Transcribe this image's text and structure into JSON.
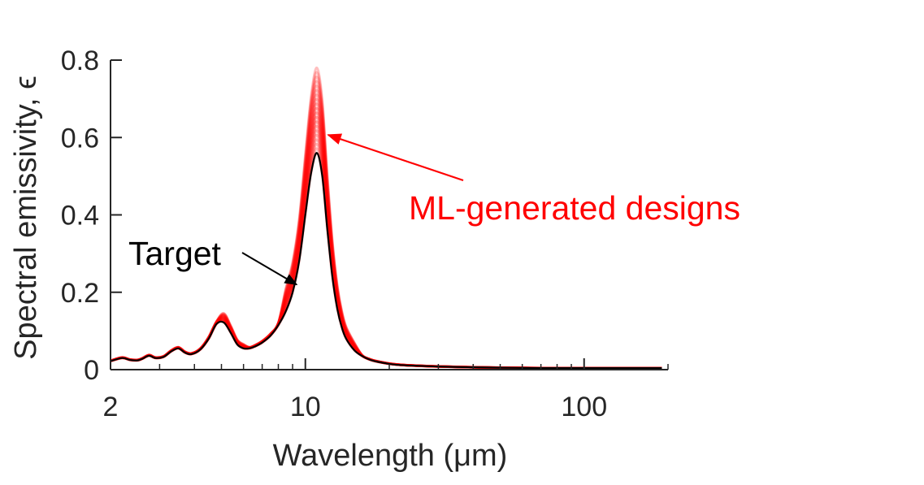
{
  "chart_data": {
    "type": "line",
    "title": "",
    "xlabel": "Wavelength (μm)",
    "ylabel": "Spectral emissivity, ϵ",
    "xscale": "log",
    "xlim": [
      2,
      200
    ],
    "ylim": [
      0,
      0.8
    ],
    "xticks": [
      2,
      10,
      100
    ],
    "xtick_labels": [
      "2",
      "10",
      "100"
    ],
    "yticks": [
      0,
      0.2,
      0.4,
      0.6,
      0.8
    ],
    "ytick_labels": [
      "0",
      "0.2",
      "0.4",
      "0.6",
      "0.8"
    ],
    "grid": false,
    "legend": "none",
    "colors": {
      "target": "#000000",
      "designs": "#ff0000",
      "axis": "#262626"
    },
    "series": [
      {
        "name": "Target",
        "color": "#000000",
        "x": [
          2,
          2.2,
          2.35,
          2.5,
          2.6,
          2.75,
          2.9,
          3.1,
          3.3,
          3.5,
          3.7,
          3.9,
          4.2,
          4.5,
          4.8,
          5.1,
          5.4,
          5.7,
          6.0,
          6.3,
          6.6,
          7.0,
          7.5,
          8.0,
          8.5,
          9.0,
          9.5,
          10.0,
          10.5,
          11.0,
          11.5,
          12.0,
          12.5,
          13.0,
          13.5,
          14.0,
          15.0,
          16.0,
          17.0,
          18.0,
          20.0,
          22.0,
          25.0,
          30.0,
          40.0,
          50.0,
          70.0,
          100.0,
          150.0,
          190.0
        ],
        "y": [
          0.022,
          0.03,
          0.025,
          0.024,
          0.028,
          0.036,
          0.03,
          0.033,
          0.047,
          0.055,
          0.044,
          0.04,
          0.052,
          0.08,
          0.118,
          0.122,
          0.095,
          0.065,
          0.055,
          0.055,
          0.06,
          0.07,
          0.088,
          0.115,
          0.15,
          0.2,
          0.28,
          0.4,
          0.51,
          0.56,
          0.5,
          0.36,
          0.24,
          0.16,
          0.11,
          0.08,
          0.05,
          0.035,
          0.026,
          0.021,
          0.015,
          0.012,
          0.01,
          0.008,
          0.006,
          0.005,
          0.004,
          0.004,
          0.004,
          0.004
        ]
      }
    ],
    "design_curves": {
      "count": 20,
      "peak_range": [
        0.56,
        0.78
      ]
    },
    "annotations": [
      {
        "id": "target",
        "text": "Target",
        "color": "#000000",
        "arrow_to": {
          "x": 9.3,
          "y": 0.22
        }
      },
      {
        "id": "designs",
        "text": "ML-generated designs",
        "color": "#ff0000",
        "arrow_to": {
          "x": 11.6,
          "y": 0.615
        }
      }
    ]
  }
}
